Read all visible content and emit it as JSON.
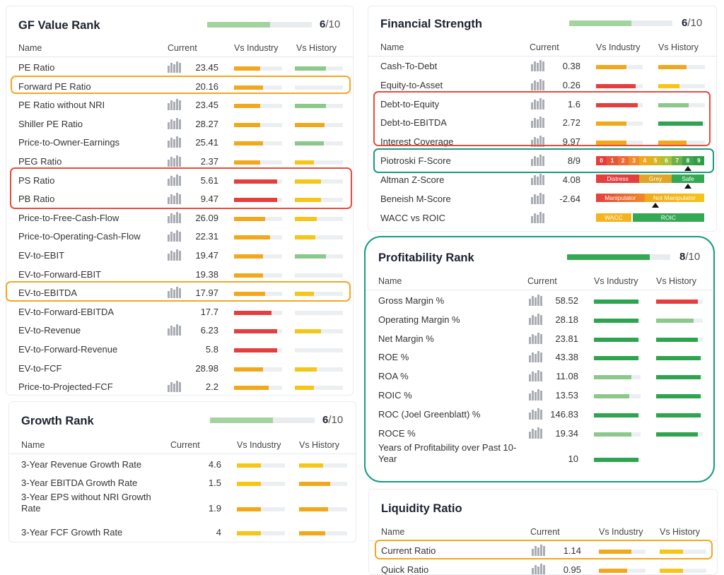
{
  "colors": {
    "green": "#2ea44f",
    "lightgreen": "#8bc98b",
    "yellow": "#f5c518",
    "orange": "#f2a81d",
    "red": "#e53e3e",
    "rankgreen": "#a3d4a0",
    "rankdark": "#34a853",
    "track": "#eceff1",
    "orange_box": "#f5a623",
    "red_box": "#e74c3c",
    "teal_box": "#1a9a80"
  },
  "gf": {
    "title": "GF Value Rank",
    "rank": "6",
    "rank_total": "/10",
    "rank_fraction": 0.6,
    "headers": {
      "name": "Name",
      "current": "Current",
      "industry": "Vs Industry",
      "history": "Vs History"
    },
    "rows": [
      {
        "name": "PE Ratio",
        "value": "23.45",
        "spark": true,
        "ind": 0.55,
        "indc": "orange",
        "hist": 0.65,
        "histc": "lightgreen"
      },
      {
        "name": "Forward PE Ratio",
        "value": "20.16",
        "spark": false,
        "ind": 0.6,
        "indc": "orange",
        "hist": 0,
        "histc": "track"
      },
      {
        "name": "PE Ratio without NRI",
        "value": "23.45",
        "spark": true,
        "ind": 0.55,
        "indc": "orange",
        "hist": 0.65,
        "histc": "lightgreen"
      },
      {
        "name": "Shiller PE Ratio",
        "value": "28.27",
        "spark": true,
        "ind": 0.55,
        "indc": "orange",
        "hist": 0.62,
        "histc": "orange"
      },
      {
        "name": "Price-to-Owner-Earnings",
        "value": "25.41",
        "spark": true,
        "ind": 0.6,
        "indc": "orange",
        "hist": 0.6,
        "histc": "lightgreen"
      },
      {
        "name": "PEG Ratio",
        "value": "2.37",
        "spark": true,
        "ind": 0.55,
        "indc": "orange",
        "hist": 0.4,
        "histc": "yellow"
      },
      {
        "name": "PS Ratio",
        "value": "5.61",
        "spark": true,
        "ind": 0.9,
        "indc": "red",
        "hist": 0.55,
        "histc": "yellow"
      },
      {
        "name": "PB Ratio",
        "value": "9.47",
        "spark": true,
        "ind": 0.9,
        "indc": "red",
        "hist": 0.55,
        "histc": "yellow"
      },
      {
        "name": "Price-to-Free-Cash-Flow",
        "value": "26.09",
        "spark": true,
        "ind": 0.65,
        "indc": "orange",
        "hist": 0.45,
        "histc": "yellow"
      },
      {
        "name": "Price-to-Operating-Cash-Flow",
        "value": "22.31",
        "spark": true,
        "ind": 0.75,
        "indc": "orange",
        "hist": 0.42,
        "histc": "yellow"
      },
      {
        "name": "EV-to-EBIT",
        "value": "19.47",
        "spark": true,
        "ind": 0.6,
        "indc": "orange",
        "hist": 0.65,
        "histc": "lightgreen"
      },
      {
        "name": "EV-to-Forward-EBIT",
        "value": "19.38",
        "spark": false,
        "ind": 0.6,
        "indc": "orange",
        "hist": 0,
        "histc": "track"
      },
      {
        "name": "EV-to-EBITDA",
        "value": "17.97",
        "spark": true,
        "ind": 0.65,
        "indc": "orange",
        "hist": 0.4,
        "histc": "yellow"
      },
      {
        "name": "EV-to-Forward-EBITDA",
        "value": "17.7",
        "spark": false,
        "ind": 0.78,
        "indc": "red",
        "hist": 0,
        "histc": "track"
      },
      {
        "name": "EV-to-Revenue",
        "value": "6.23",
        "spark": true,
        "ind": 0.9,
        "indc": "red",
        "hist": 0.55,
        "histc": "yellow"
      },
      {
        "name": "EV-to-Forward-Revenue",
        "value": "5.8",
        "spark": false,
        "ind": 0.9,
        "indc": "red",
        "hist": 0,
        "histc": "track"
      },
      {
        "name": "EV-to-FCF",
        "value": "28.98",
        "spark": false,
        "ind": 0.6,
        "indc": "orange",
        "hist": 0.45,
        "histc": "yellow"
      },
      {
        "name": "Price-to-Projected-FCF",
        "value": "2.2",
        "spark": true,
        "ind": 0.72,
        "indc": "orange",
        "hist": 0.4,
        "histc": "yellow"
      }
    ]
  },
  "growth": {
    "title": "Growth Rank",
    "rank": "6",
    "rank_total": "/10",
    "rank_fraction": 0.6,
    "headers": {
      "name": "Name",
      "current": "Current",
      "industry": "Vs Industry",
      "history": "Vs History"
    },
    "rows": [
      {
        "name": "3-Year Revenue Growth Rate",
        "value": "4.6",
        "ind": 0.5,
        "indc": "yellow",
        "hist": 0.5,
        "histc": "yellow"
      },
      {
        "name": "3-Year EBITDA Growth Rate",
        "value": "1.5",
        "ind": 0.5,
        "indc": "yellow",
        "hist": 0.65,
        "histc": "orange"
      },
      {
        "name": "3-Year EPS without NRI Growth Rate",
        "value": "1.9",
        "ind": 0.5,
        "indc": "orange",
        "hist": 0.6,
        "histc": "orange"
      },
      {
        "name": "3-Year FCF Growth Rate",
        "value": "4",
        "ind": 0.5,
        "indc": "yellow",
        "hist": 0.55,
        "histc": "orange"
      }
    ]
  },
  "fin": {
    "title": "Financial Strength",
    "rank": "6",
    "rank_total": "/10",
    "rank_fraction": 0.6,
    "headers": {
      "name": "Name",
      "current": "Current",
      "industry": "Vs Industry",
      "history": "Vs History"
    },
    "rows": [
      {
        "name": "Cash-To-Debt",
        "value": "0.38",
        "ind": 0.65,
        "indc": "orange",
        "hist": 0.6,
        "histc": "orange"
      },
      {
        "name": "Equity-to-Asset",
        "value": "0.26",
        "ind": 0.85,
        "indc": "red",
        "hist": 0.45,
        "histc": "yellow"
      },
      {
        "name": "Debt-to-Equity",
        "value": "1.6",
        "ind": 0.9,
        "indc": "red",
        "hist": 0.65,
        "histc": "lightgreen"
      },
      {
        "name": "Debt-to-EBITDA",
        "value": "2.72",
        "ind": 0.65,
        "indc": "orange",
        "hist": 0.95,
        "histc": "green"
      },
      {
        "name": "Interest Coverage",
        "value": "9.97",
        "ind": 0.65,
        "indc": "orange",
        "hist": 0.6,
        "histc": "orange"
      }
    ],
    "piotroski": {
      "name": "Piotroski F-Score",
      "value": "8/9",
      "labels": [
        "0",
        "1",
        "2",
        "3",
        "4",
        "5",
        "6",
        "7",
        "8",
        "9"
      ],
      "marker": 8
    },
    "altman": {
      "name": "Altman Z-Score",
      "value": "4.08",
      "segs": [
        "Distress",
        "Grey",
        "Safe"
      ],
      "marker": 0.85
    },
    "beneish": {
      "name": "Beneish M-Score",
      "value": "-2.64",
      "segs": [
        "Manipulator",
        "Not Manipulator"
      ],
      "marker": 0.55
    },
    "wacc": {
      "name": "WACC vs ROIC",
      "segs": [
        "WACC",
        "ROIC"
      ]
    }
  },
  "prof": {
    "title": "Profitability Rank",
    "rank": "8",
    "rank_total": "/10",
    "rank_fraction": 0.8,
    "headers": {
      "name": "Name",
      "current": "Current",
      "industry": "Vs Industry",
      "history": "Vs History"
    },
    "rows": [
      {
        "name": "Gross Margin %",
        "value": "58.52",
        "ind": 0.95,
        "indc": "green",
        "hist": 0.9,
        "histc": "red"
      },
      {
        "name": "Operating Margin %",
        "value": "28.18",
        "ind": 0.95,
        "indc": "green",
        "hist": 0.8,
        "histc": "lightgreen"
      },
      {
        "name": "Net Margin %",
        "value": "23.81",
        "ind": 0.95,
        "indc": "green",
        "hist": 0.9,
        "histc": "green"
      },
      {
        "name": "ROE %",
        "value": "43.38",
        "ind": 0.95,
        "indc": "green",
        "hist": 0.95,
        "histc": "green"
      },
      {
        "name": "ROA %",
        "value": "11.08",
        "ind": 0.8,
        "indc": "lightgreen",
        "hist": 0.95,
        "histc": "green"
      },
      {
        "name": "ROIC %",
        "value": "13.53",
        "ind": 0.75,
        "indc": "lightgreen",
        "hist": 0.95,
        "histc": "green"
      },
      {
        "name": "ROC (Joel Greenblatt) %",
        "value": "146.83",
        "ind": 0.95,
        "indc": "green",
        "hist": 0.95,
        "histc": "green"
      },
      {
        "name": "ROCE %",
        "value": "19.34",
        "ind": 0.8,
        "indc": "lightgreen",
        "hist": 0.9,
        "histc": "green"
      },
      {
        "name": "Years of Profitability over Past 10-Year",
        "value": "10",
        "ind": 0.95,
        "indc": "green",
        "hist": 0,
        "histc": "none"
      }
    ]
  },
  "liq": {
    "title": "Liquidity Ratio",
    "headers": {
      "name": "Name",
      "current": "Current",
      "industry": "Vs Industry",
      "history": "Vs History"
    },
    "rows": [
      {
        "name": "Current Ratio",
        "value": "1.14",
        "ind": 0.7,
        "indc": "orange",
        "hist": 0.5,
        "histc": "yellow"
      },
      {
        "name": "Quick Ratio",
        "value": "0.95",
        "ind": 0.6,
        "indc": "orange",
        "hist": 0.5,
        "histc": "yellow"
      }
    ]
  }
}
